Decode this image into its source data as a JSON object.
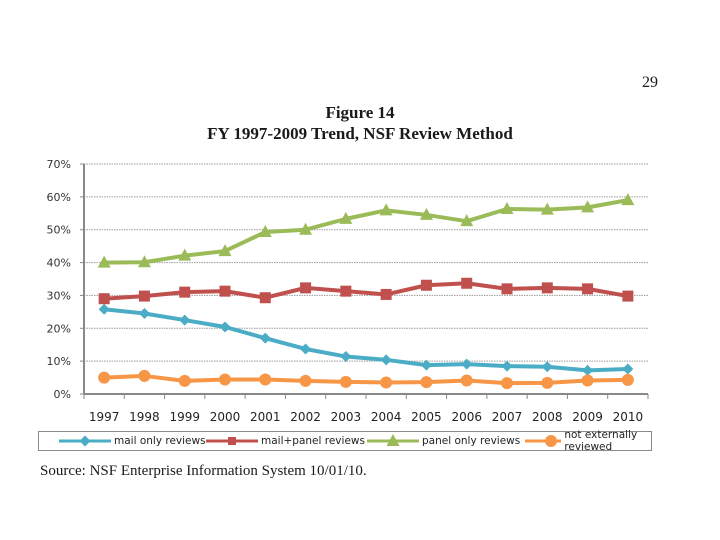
{
  "page": {
    "page_number": "29",
    "figure_label": "Figure 14",
    "figure_title": "FY 1997-2009 Trend, NSF Review Method",
    "source": "Source: NSF Enterprise Information System 10/01/10."
  },
  "chart_data": {
    "type": "line",
    "title": "FY 1997-2009 Trend, NSF Review Method",
    "xlabel": "",
    "ylabel": "",
    "categories": [
      "1997",
      "1998",
      "1999",
      "2000",
      "2001",
      "2002",
      "2003",
      "2004",
      "2005",
      "2006",
      "2007",
      "2008",
      "2009",
      "2010"
    ],
    "ylim": [
      0,
      70
    ],
    "yticks": [
      0,
      10,
      20,
      30,
      40,
      50,
      60,
      70
    ],
    "ytick_labels": [
      "0%",
      "10%",
      "20%",
      "30%",
      "40%",
      "50%",
      "60%",
      "70%"
    ],
    "grid": true,
    "legend_position": "bottom",
    "series": [
      {
        "name": "mail only reviews",
        "color": "#4bacc6",
        "marker": "diamond",
        "values": [
          25.8,
          24.5,
          22.5,
          20.4,
          17.0,
          13.7,
          11.4,
          10.4,
          8.8,
          9.1,
          8.5,
          8.3,
          7.2,
          7.6
        ]
      },
      {
        "name": "mail+panel reviews",
        "color": "#c0504d",
        "marker": "square",
        "values": [
          29.0,
          29.8,
          31.0,
          31.3,
          29.3,
          32.3,
          31.3,
          30.3,
          33.1,
          33.7,
          32.0,
          32.3,
          32.0,
          29.8
        ]
      },
      {
        "name": "panel only reviews",
        "color": "#9bbb59",
        "marker": "triangle",
        "values": [
          40.0,
          40.1,
          42.1,
          43.5,
          49.3,
          50.0,
          53.3,
          55.9,
          54.5,
          52.6,
          56.3,
          56.1,
          56.8,
          59.0
        ]
      },
      {
        "name": "not externally reviewed",
        "color": "#f79646",
        "marker": "circle",
        "values": [
          5.0,
          5.5,
          4.0,
          4.4,
          4.4,
          4.0,
          3.7,
          3.5,
          3.6,
          4.1,
          3.3,
          3.4,
          4.1,
          4.3
        ]
      }
    ]
  }
}
